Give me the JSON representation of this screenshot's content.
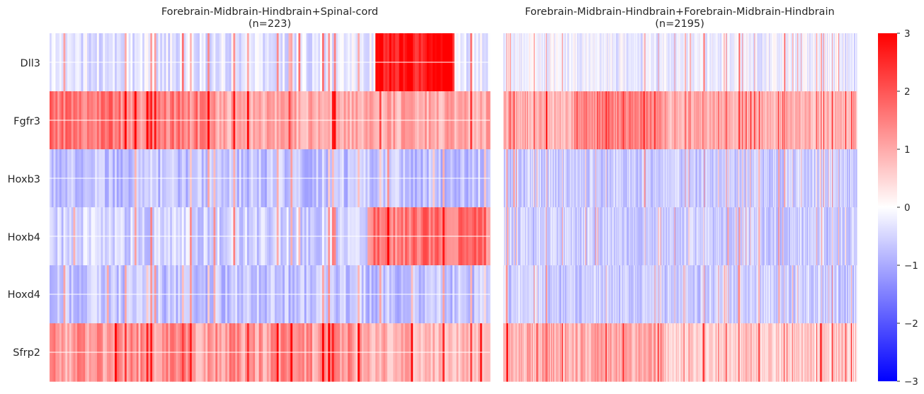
{
  "chart_data": [
    {
      "type": "heatmap",
      "title": "Forebrain-Midbrain-Hindbrain+Spinal-cord",
      "subtitle": "(n=223)",
      "rows": [
        "Dll3",
        "Fgfr3",
        "Hoxb3",
        "Hoxb4",
        "Hoxd4",
        "Sfrp2"
      ],
      "n_columns": 223,
      "grid": true,
      "approx_row_means": [
        -0.3,
        1.0,
        -0.7,
        -0.5,
        -0.7,
        0.9
      ],
      "high_expression_regions": [
        {
          "row": "Dll3",
          "column_fraction": [
            0.74,
            0.92
          ],
          "value": 2.8
        },
        {
          "row": "Fgfr3",
          "column_fraction": [
            0.0,
            0.38
          ],
          "value": 1.5
        },
        {
          "row": "Hoxb4",
          "column_fraction": [
            0.72,
            1.0
          ],
          "value": 1.6
        },
        {
          "row": "Sfrp2",
          "column_fraction": [
            0.0,
            0.72
          ],
          "value": 1.2
        }
      ]
    },
    {
      "type": "heatmap",
      "title": "Forebrain-Midbrain-Hindbrain+Forebrain-Midbrain-Hindbrain",
      "subtitle": "(n=2195)",
      "rows": [
        "Dll3",
        "Fgfr3",
        "Hoxb3",
        "Hoxb4",
        "Hoxd4",
        "Sfrp2"
      ],
      "n_columns": 2195,
      "grid": false,
      "approx_row_means": [
        -0.2,
        0.9,
        -0.6,
        -0.6,
        -0.6,
        0.6
      ],
      "high_expression_regions": [
        {
          "row": "Fgfr3",
          "column_fraction": [
            0.2,
            0.46
          ],
          "value": 1.5
        },
        {
          "row": "Sfrp2",
          "column_fraction": [
            0.0,
            0.46
          ],
          "value": 1.0
        }
      ]
    }
  ],
  "colorbar": {
    "colormap": "bwr",
    "min": -3,
    "max": 3,
    "ticks": [
      "3",
      "2",
      "1",
      "0",
      "−1",
      "−2",
      "−3"
    ],
    "colors": [
      "#0000ff",
      "#ffffff",
      "#ff0000"
    ]
  }
}
